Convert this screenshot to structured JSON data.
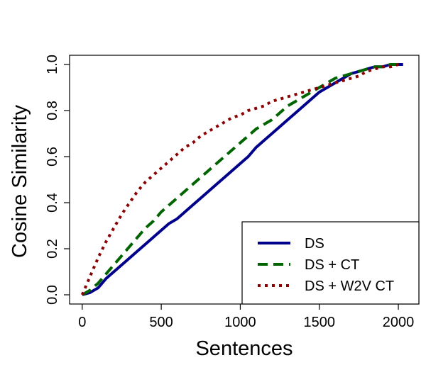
{
  "chart_data": {
    "type": "line",
    "title": "",
    "xlabel": "Sentences",
    "ylabel": "Cosine Similarity",
    "xlim": [
      -80,
      2130
    ],
    "ylim": [
      -0.04,
      1.04
    ],
    "xticks": [
      0,
      500,
      1000,
      1500,
      2000
    ],
    "yticks": [
      0.0,
      0.2,
      0.4,
      0.6,
      0.8,
      1.0
    ],
    "xtick_labels": [
      "0",
      "500",
      "1000",
      "1500",
      "2000"
    ],
    "ytick_labels": [
      "0.0",
      "0.2",
      "0.4",
      "0.6",
      "0.8",
      "1.0"
    ],
    "grid": false,
    "legend_position": "bottom-right",
    "series": [
      {
        "name": "DS",
        "color": "#00008b",
        "dash": "solid",
        "x": [
          0,
          50,
          100,
          150,
          200,
          250,
          300,
          350,
          400,
          450,
          500,
          550,
          600,
          650,
          700,
          750,
          800,
          850,
          900,
          950,
          1000,
          1050,
          1100,
          1150,
          1200,
          1250,
          1300,
          1350,
          1400,
          1450,
          1500,
          1550,
          1600,
          1650,
          1700,
          1750,
          1800,
          1850,
          1900,
          1950,
          2000,
          2030
        ],
        "y": [
          0.0,
          0.01,
          0.03,
          0.07,
          0.1,
          0.13,
          0.16,
          0.19,
          0.22,
          0.25,
          0.28,
          0.31,
          0.33,
          0.36,
          0.39,
          0.42,
          0.45,
          0.48,
          0.51,
          0.54,
          0.57,
          0.6,
          0.64,
          0.67,
          0.7,
          0.73,
          0.76,
          0.79,
          0.82,
          0.85,
          0.88,
          0.9,
          0.92,
          0.94,
          0.96,
          0.97,
          0.98,
          0.99,
          0.99,
          1.0,
          1.0,
          1.0
        ]
      },
      {
        "name": "DS + CT",
        "color": "#006400",
        "dash": "dashed",
        "x": [
          0,
          50,
          100,
          150,
          200,
          250,
          300,
          350,
          400,
          450,
          500,
          550,
          600,
          650,
          700,
          750,
          800,
          850,
          900,
          950,
          1000,
          1050,
          1100,
          1150,
          1200,
          1250,
          1300,
          1350,
          1400,
          1450,
          1500,
          1550,
          1600,
          1650,
          1700,
          1750,
          1800,
          1850,
          1900,
          1950,
          2000,
          2030
        ],
        "y": [
          0.0,
          0.02,
          0.05,
          0.09,
          0.13,
          0.17,
          0.21,
          0.25,
          0.29,
          0.32,
          0.36,
          0.39,
          0.42,
          0.45,
          0.48,
          0.51,
          0.54,
          0.57,
          0.6,
          0.63,
          0.66,
          0.69,
          0.72,
          0.74,
          0.76,
          0.79,
          0.82,
          0.84,
          0.86,
          0.88,
          0.9,
          0.92,
          0.94,
          0.95,
          0.96,
          0.97,
          0.98,
          0.99,
          0.99,
          1.0,
          1.0,
          1.0
        ]
      },
      {
        "name": "DS + W2V CT",
        "color": "#8b0000",
        "dash": "dotted",
        "x": [
          0,
          50,
          100,
          150,
          200,
          250,
          300,
          350,
          400,
          450,
          500,
          550,
          600,
          650,
          700,
          750,
          800,
          850,
          900,
          950,
          1000,
          1050,
          1100,
          1150,
          1200,
          1250,
          1300,
          1350,
          1400,
          1450,
          1500,
          1550,
          1600,
          1650,
          1700,
          1750,
          1800,
          1850,
          1900,
          1950,
          2000,
          2030
        ],
        "y": [
          0.0,
          0.08,
          0.16,
          0.23,
          0.29,
          0.35,
          0.4,
          0.45,
          0.49,
          0.52,
          0.55,
          0.58,
          0.61,
          0.64,
          0.66,
          0.69,
          0.71,
          0.73,
          0.75,
          0.77,
          0.78,
          0.8,
          0.81,
          0.82,
          0.84,
          0.85,
          0.86,
          0.87,
          0.88,
          0.89,
          0.9,
          0.91,
          0.92,
          0.93,
          0.94,
          0.95,
          0.97,
          0.98,
          0.99,
          0.99,
          1.0,
          1.0
        ]
      }
    ]
  }
}
